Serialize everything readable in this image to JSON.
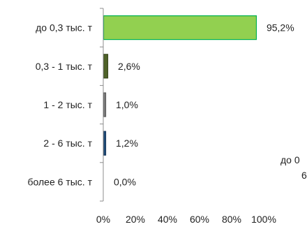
{
  "chart_data": {
    "type": "bar",
    "orientation": "horizontal",
    "categories": [
      "до 0,3 тыс. т",
      "0,3 - 1 тыс. т",
      "1 - 2 тыс. т",
      "2 - 6 тыс. т",
      "более 6 тыс. т"
    ],
    "values": [
      95.2,
      2.6,
      1.0,
      1.2,
      0.0
    ],
    "value_labels": [
      "95,2%",
      "2,6%",
      "1,0%",
      "1,2%",
      "0,0%"
    ],
    "bar_colors": [
      "#92d050",
      "#4f6228",
      "#7f7f7f",
      "#1f4e79",
      "#a6a6a6"
    ],
    "bar_border_colors": [
      "#00b050",
      "#3b4a1f",
      "#595959",
      "#17375e",
      "#808080"
    ],
    "x_ticks": [
      "0%",
      "20%",
      "40%",
      "60%",
      "80%",
      "100%"
    ],
    "xlim": [
      0,
      100
    ],
    "grid": false,
    "title": "",
    "xlabel": "",
    "ylabel": ""
  },
  "clipped_text": {
    "line1": "до 0",
    "line2": "6"
  }
}
